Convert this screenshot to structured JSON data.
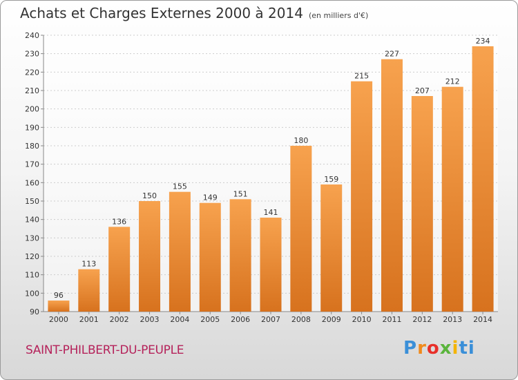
{
  "title": "Achats et Charges Externes 2000 à 2014",
  "subtitle": "(en milliers d'€)",
  "town": "SAINT-PHILBERT-DU-PEUPLE",
  "logo": [
    "P",
    "r",
    "o",
    "x",
    "i",
    "ti"
  ],
  "colors": {
    "bar_top": "#f7a24e",
    "bar_bottom": "#d7721e",
    "town": "#b5225a"
  },
  "chart_data": {
    "type": "bar",
    "title": "Achats et Charges Externes 2000 à 2014",
    "xlabel": "",
    "ylabel": "",
    "categories": [
      "2000",
      "2001",
      "2002",
      "2003",
      "2004",
      "2005",
      "2006",
      "2007",
      "2008",
      "2009",
      "2010",
      "2011",
      "2012",
      "2013",
      "2014"
    ],
    "values": [
      96,
      113,
      136,
      150,
      155,
      149,
      151,
      141,
      180,
      159,
      215,
      227,
      207,
      212,
      234
    ],
    "ylim": [
      90,
      240
    ],
    "yticks": [
      90,
      100,
      110,
      120,
      130,
      140,
      150,
      160,
      170,
      180,
      190,
      200,
      210,
      220,
      230,
      240
    ],
    "grid": true,
    "grid_axis": "y"
  }
}
